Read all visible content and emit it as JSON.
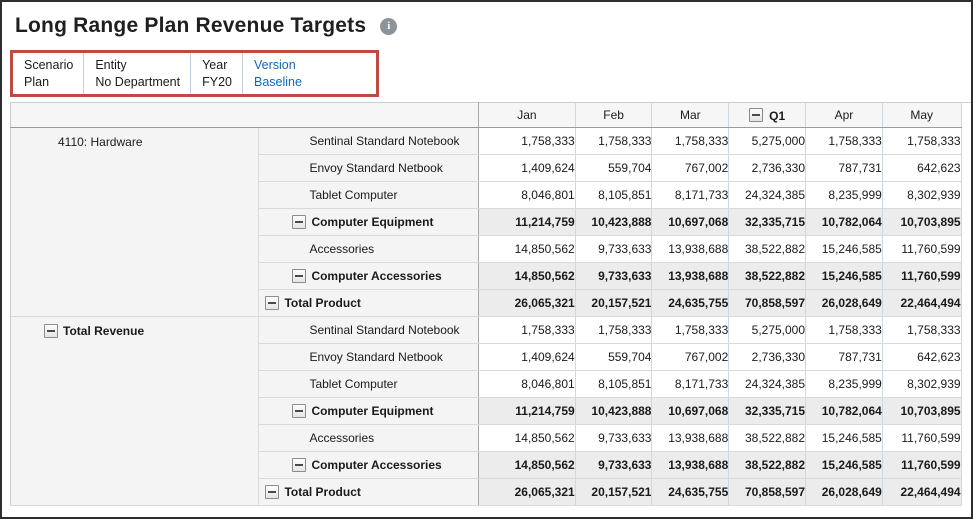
{
  "title": "Long Range Plan Revenue Targets",
  "colors": {
    "pov_highlight_border": "#be4a43",
    "link_blue": "#1567b3",
    "total_row_bg": "#ececec",
    "header_cell_bg": "#f4f4f4",
    "grid_vertical_border": "#ccd9e4"
  },
  "pov": {
    "segments": [
      {
        "dimension": "Scenario",
        "member": "Plan",
        "link": false
      },
      {
        "dimension": "Entity",
        "member": "No Department",
        "link": false
      },
      {
        "dimension": "Year",
        "member": "FY20",
        "link": false
      },
      {
        "dimension": "Version",
        "member": "Baseline",
        "link": true
      }
    ]
  },
  "grid": {
    "column_headers": [
      {
        "label": "Jan",
        "bold": false,
        "collapsible": false
      },
      {
        "label": "Feb",
        "bold": false,
        "collapsible": false
      },
      {
        "label": "Mar",
        "bold": false,
        "collapsible": false
      },
      {
        "label": "Q1",
        "bold": true,
        "collapsible": true
      },
      {
        "label": "Apr",
        "bold": false,
        "collapsible": false
      },
      {
        "label": "May",
        "bold": false,
        "collapsible": false
      }
    ],
    "row_groups": [
      {
        "name": "4110: Hardware",
        "bold": false,
        "collapsible": false,
        "span": 7
      },
      {
        "name": "Total Revenue",
        "bold": true,
        "collapsible": true,
        "span": 7
      }
    ],
    "rows": [
      {
        "group": 0,
        "name": "Sentinal Standard Notebook",
        "level": 2,
        "bold": false,
        "collapsible": false,
        "values": [
          "1,758,333",
          "1,758,333",
          "1,758,333",
          "5,275,000",
          "1,758,333",
          "1,758,333"
        ]
      },
      {
        "group": 0,
        "name": "Envoy Standard Netbook",
        "level": 2,
        "bold": false,
        "collapsible": false,
        "values": [
          "1,409,624",
          "559,704",
          "767,002",
          "2,736,330",
          "787,731",
          "642,623"
        ]
      },
      {
        "group": 0,
        "name": "Tablet Computer",
        "level": 2,
        "bold": false,
        "collapsible": false,
        "values": [
          "8,046,801",
          "8,105,851",
          "8,171,733",
          "24,324,385",
          "8,235,999",
          "8,302,939"
        ]
      },
      {
        "group": 0,
        "name": "Computer Equipment",
        "level": 1,
        "bold": true,
        "collapsible": true,
        "values": [
          "11,214,759",
          "10,423,888",
          "10,697,068",
          "32,335,715",
          "10,782,064",
          "10,703,895"
        ]
      },
      {
        "group": 0,
        "name": "Accessories",
        "level": 2,
        "bold": false,
        "collapsible": false,
        "values": [
          "14,850,562",
          "9,733,633",
          "13,938,688",
          "38,522,882",
          "15,246,585",
          "11,760,599"
        ]
      },
      {
        "group": 0,
        "name": "Computer Accessories",
        "level": 1,
        "bold": true,
        "collapsible": true,
        "values": [
          "14,850,562",
          "9,733,633",
          "13,938,688",
          "38,522,882",
          "15,246,585",
          "11,760,599"
        ]
      },
      {
        "group": 0,
        "name": "Total Product",
        "level": 0,
        "bold": true,
        "collapsible": true,
        "values": [
          "26,065,321",
          "20,157,521",
          "24,635,755",
          "70,858,597",
          "26,028,649",
          "22,464,494"
        ]
      },
      {
        "group": 1,
        "name": "Sentinal Standard Notebook",
        "level": 2,
        "bold": false,
        "collapsible": false,
        "values": [
          "1,758,333",
          "1,758,333",
          "1,758,333",
          "5,275,000",
          "1,758,333",
          "1,758,333"
        ]
      },
      {
        "group": 1,
        "name": "Envoy Standard Netbook",
        "level": 2,
        "bold": false,
        "collapsible": false,
        "values": [
          "1,409,624",
          "559,704",
          "767,002",
          "2,736,330",
          "787,731",
          "642,623"
        ]
      },
      {
        "group": 1,
        "name": "Tablet Computer",
        "level": 2,
        "bold": false,
        "collapsible": false,
        "values": [
          "8,046,801",
          "8,105,851",
          "8,171,733",
          "24,324,385",
          "8,235,999",
          "8,302,939"
        ]
      },
      {
        "group": 1,
        "name": "Computer Equipment",
        "level": 1,
        "bold": true,
        "collapsible": true,
        "values": [
          "11,214,759",
          "10,423,888",
          "10,697,068",
          "32,335,715",
          "10,782,064",
          "10,703,895"
        ]
      },
      {
        "group": 1,
        "name": "Accessories",
        "level": 2,
        "bold": false,
        "collapsible": false,
        "values": [
          "14,850,562",
          "9,733,633",
          "13,938,688",
          "38,522,882",
          "15,246,585",
          "11,760,599"
        ]
      },
      {
        "group": 1,
        "name": "Computer Accessories",
        "level": 1,
        "bold": true,
        "collapsible": true,
        "values": [
          "14,850,562",
          "9,733,633",
          "13,938,688",
          "38,522,882",
          "15,246,585",
          "11,760,599"
        ]
      },
      {
        "group": 1,
        "name": "Total Product",
        "level": 0,
        "bold": true,
        "collapsible": true,
        "values": [
          "26,065,321",
          "20,157,521",
          "24,635,755",
          "70,858,597",
          "26,028,649",
          "22,464,494"
        ]
      }
    ]
  }
}
